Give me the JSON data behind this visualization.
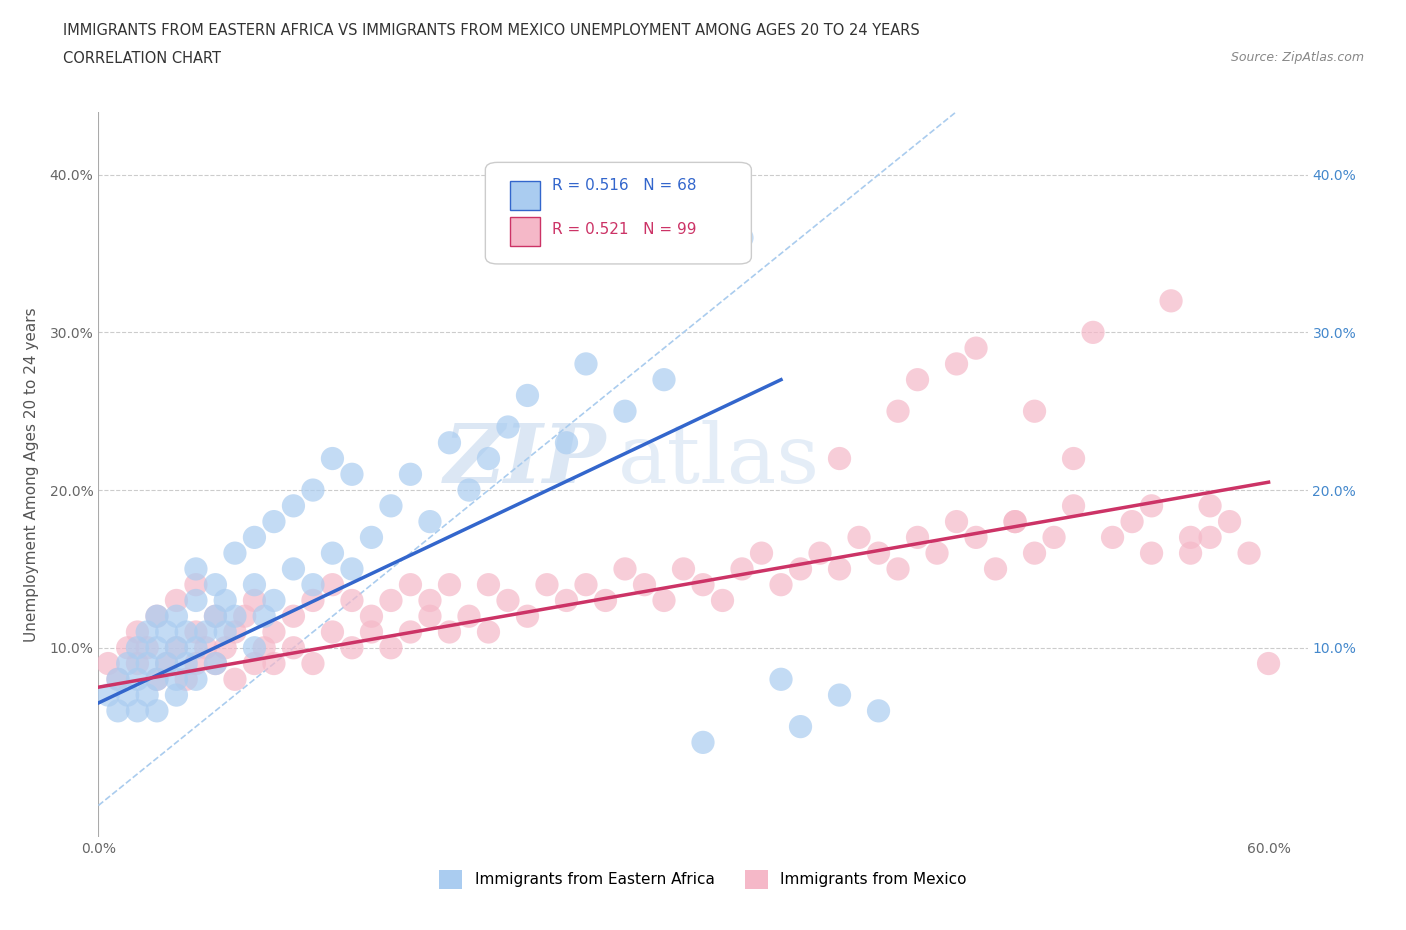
{
  "title_line1": "IMMIGRANTS FROM EASTERN AFRICA VS IMMIGRANTS FROM MEXICO UNEMPLOYMENT AMONG AGES 20 TO 24 YEARS",
  "title_line2": "CORRELATION CHART",
  "source_text": "Source: ZipAtlas.com",
  "ylabel": "Unemployment Among Ages 20 to 24 years",
  "xlim": [
    0.0,
    0.62
  ],
  "ylim": [
    -0.02,
    0.44
  ],
  "xticks": [
    0.0,
    0.1,
    0.2,
    0.3,
    0.4,
    0.5,
    0.6
  ],
  "yticks": [
    0.0,
    0.1,
    0.2,
    0.3,
    0.4
  ],
  "xticklabels": [
    "0.0%",
    "",
    "",
    "",
    "",
    "",
    "60.0%"
  ],
  "yticklabels": [
    "",
    "10.0%",
    "20.0%",
    "30.0%",
    "40.0%"
  ],
  "series1_label": "Immigrants from Eastern Africa",
  "series1_color": "#aaccf0",
  "series1_R": 0.516,
  "series1_N": 68,
  "series2_label": "Immigrants from Mexico",
  "series2_color": "#f5b8c8",
  "series2_R": 0.521,
  "series2_N": 99,
  "watermark": "ZIPatlas",
  "background_color": "#ffffff",
  "grid_color": "#cccccc",
  "trend1_color": "#3366cc",
  "trend2_color": "#cc3366",
  "diag_color": "#aaccee",
  "right_axis_color": "#4488cc",
  "scatter1_x": [
    0.005,
    0.01,
    0.01,
    0.015,
    0.015,
    0.02,
    0.02,
    0.02,
    0.025,
    0.025,
    0.025,
    0.03,
    0.03,
    0.03,
    0.03,
    0.035,
    0.035,
    0.04,
    0.04,
    0.04,
    0.04,
    0.045,
    0.045,
    0.05,
    0.05,
    0.05,
    0.05,
    0.055,
    0.06,
    0.06,
    0.06,
    0.065,
    0.065,
    0.07,
    0.07,
    0.08,
    0.08,
    0.08,
    0.085,
    0.09,
    0.09,
    0.1,
    0.1,
    0.11,
    0.11,
    0.12,
    0.12,
    0.13,
    0.13,
    0.14,
    0.15,
    0.16,
    0.17,
    0.18,
    0.19,
    0.2,
    0.21,
    0.22,
    0.24,
    0.25,
    0.27,
    0.29,
    0.31,
    0.33,
    0.35,
    0.36,
    0.38,
    0.4
  ],
  "scatter1_y": [
    0.07,
    0.08,
    0.06,
    0.09,
    0.07,
    0.1,
    0.08,
    0.06,
    0.09,
    0.07,
    0.11,
    0.1,
    0.08,
    0.12,
    0.06,
    0.09,
    0.11,
    0.1,
    0.08,
    0.12,
    0.07,
    0.11,
    0.09,
    0.1,
    0.13,
    0.08,
    0.15,
    0.11,
    0.12,
    0.09,
    0.14,
    0.11,
    0.13,
    0.12,
    0.16,
    0.1,
    0.14,
    0.17,
    0.12,
    0.13,
    0.18,
    0.15,
    0.19,
    0.14,
    0.2,
    0.16,
    0.22,
    0.15,
    0.21,
    0.17,
    0.19,
    0.21,
    0.18,
    0.23,
    0.2,
    0.22,
    0.24,
    0.26,
    0.23,
    0.28,
    0.25,
    0.27,
    0.04,
    0.36,
    0.08,
    0.05,
    0.07,
    0.06
  ],
  "scatter2_x": [
    0.005,
    0.01,
    0.015,
    0.02,
    0.02,
    0.025,
    0.03,
    0.03,
    0.035,
    0.04,
    0.04,
    0.045,
    0.05,
    0.05,
    0.05,
    0.055,
    0.06,
    0.06,
    0.065,
    0.07,
    0.07,
    0.075,
    0.08,
    0.08,
    0.085,
    0.09,
    0.09,
    0.1,
    0.1,
    0.11,
    0.11,
    0.12,
    0.12,
    0.13,
    0.13,
    0.14,
    0.14,
    0.15,
    0.15,
    0.16,
    0.16,
    0.17,
    0.17,
    0.18,
    0.18,
    0.19,
    0.2,
    0.2,
    0.21,
    0.22,
    0.23,
    0.24,
    0.25,
    0.26,
    0.27,
    0.28,
    0.29,
    0.3,
    0.31,
    0.32,
    0.33,
    0.34,
    0.35,
    0.36,
    0.37,
    0.38,
    0.39,
    0.4,
    0.41,
    0.42,
    0.43,
    0.44,
    0.45,
    0.46,
    0.47,
    0.48,
    0.49,
    0.5,
    0.52,
    0.54,
    0.55,
    0.56,
    0.57,
    0.58,
    0.59,
    0.6,
    0.42,
    0.45,
    0.48,
    0.51,
    0.54,
    0.57,
    0.38,
    0.41,
    0.44,
    0.47,
    0.5,
    0.53,
    0.56
  ],
  "scatter2_y": [
    0.09,
    0.08,
    0.1,
    0.09,
    0.11,
    0.1,
    0.08,
    0.12,
    0.09,
    0.1,
    0.13,
    0.08,
    0.09,
    0.11,
    0.14,
    0.1,
    0.09,
    0.12,
    0.1,
    0.11,
    0.08,
    0.12,
    0.09,
    0.13,
    0.1,
    0.11,
    0.09,
    0.1,
    0.12,
    0.09,
    0.13,
    0.11,
    0.14,
    0.1,
    0.13,
    0.11,
    0.12,
    0.1,
    0.13,
    0.11,
    0.14,
    0.12,
    0.13,
    0.11,
    0.14,
    0.12,
    0.11,
    0.14,
    0.13,
    0.12,
    0.14,
    0.13,
    0.14,
    0.13,
    0.15,
    0.14,
    0.13,
    0.15,
    0.14,
    0.13,
    0.15,
    0.16,
    0.14,
    0.15,
    0.16,
    0.15,
    0.17,
    0.16,
    0.15,
    0.17,
    0.16,
    0.18,
    0.17,
    0.15,
    0.18,
    0.16,
    0.17,
    0.19,
    0.17,
    0.19,
    0.32,
    0.16,
    0.17,
    0.18,
    0.16,
    0.09,
    0.27,
    0.29,
    0.25,
    0.3,
    0.16,
    0.19,
    0.22,
    0.25,
    0.28,
    0.18,
    0.22,
    0.18,
    0.17
  ],
  "trend1_x": [
    0.0,
    0.35
  ],
  "trend1_y": [
    0.065,
    0.27
  ],
  "trend2_x": [
    0.0,
    0.6
  ],
  "trend2_y": [
    0.075,
    0.205
  ]
}
